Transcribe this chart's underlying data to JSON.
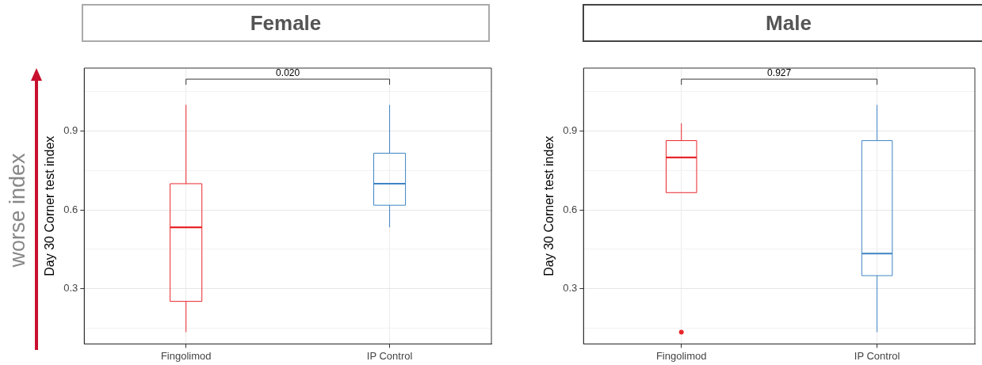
{
  "chart_data": [
    {
      "type": "box",
      "title": "Female",
      "ylabel": "Day 30 Corner test index",
      "categories": [
        "Fingolimod",
        "IP Control"
      ],
      "colors": [
        "#e8262b",
        "#3f84c4"
      ],
      "boxes": [
        {
          "low": 0.135,
          "q1": 0.252,
          "median": 0.534,
          "q3": 0.7,
          "high": 1.0
        },
        {
          "low": 0.534,
          "q1": 0.618,
          "median": 0.7,
          "q3": 0.816,
          "high": 1.0
        }
      ],
      "ylim": [
        0.09,
        1.14
      ],
      "yticks": [
        {
          "value": 0.15,
          "label": null
        },
        0.3,
        {
          "value": 0.45,
          "label": null
        },
        0.6,
        {
          "value": 0.75,
          "label": null
        },
        0.9,
        {
          "value": 1.05,
          "label": null
        }
      ],
      "grid": true,
      "annotations": [
        "0.020",
        "worse index"
      ]
    },
    {
      "type": "box",
      "title": "Male",
      "ylabel": "Day 30 Corner test index",
      "categories": [
        "Fingolimod",
        "IP Control"
      ],
      "colors": [
        "#e8262b",
        "#3f84c4"
      ],
      "boxes": [
        {
          "low": 0.666,
          "q1": 0.666,
          "median": 0.8,
          "q3": 0.864,
          "high": 0.93,
          "outliers": [
            0.135
          ]
        },
        {
          "low": 0.135,
          "q1": 0.35,
          "median": 0.434,
          "q3": 0.864,
          "high": 1.0
        }
      ],
      "ylim": [
        0.09,
        1.14
      ],
      "yticks": [
        {
          "value": 0.15,
          "label": null
        },
        0.3,
        {
          "value": 0.45,
          "label": null
        },
        0.6,
        {
          "value": 0.75,
          "label": null
        },
        0.9,
        {
          "value": 1.05,
          "label": null
        }
      ],
      "grid": true,
      "annotations": [
        "0.927"
      ]
    }
  ]
}
